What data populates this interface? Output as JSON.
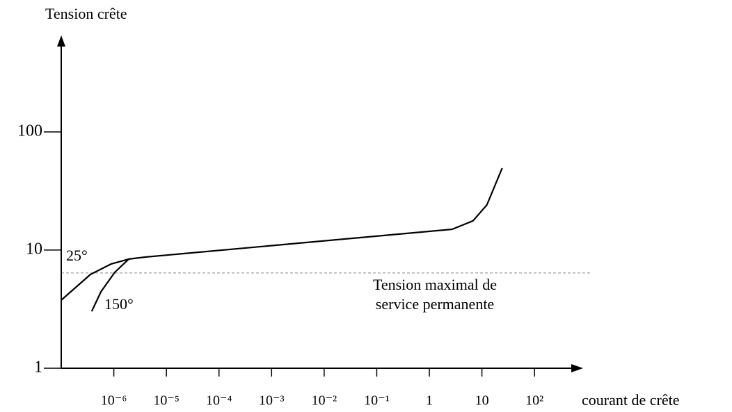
{
  "chart_data": {
    "type": "line",
    "y_label": "Tension crête",
    "x_label": "courant de crête",
    "xscale": "log",
    "yscale": "log",
    "xlim": [
      1e-07,
      500
    ],
    "ylim": [
      1,
      500
    ],
    "xticks": [
      {
        "value": 1e-06,
        "label": "10⁻⁶"
      },
      {
        "value": 1e-05,
        "label": "10⁻⁵"
      },
      {
        "value": 0.0001,
        "label": "10⁻⁴"
      },
      {
        "value": 0.001,
        "label": "10⁻³"
      },
      {
        "value": 0.01,
        "label": "10⁻²"
      },
      {
        "value": 0.1,
        "label": "10⁻¹"
      },
      1,
      10,
      {
        "value": 100,
        "label": "10²"
      }
    ],
    "yticks": [
      1,
      10,
      100
    ],
    "series": [
      {
        "name": "25°",
        "color": "#000000",
        "x": [
          1e-07,
          3.6e-07,
          8.9e-07,
          1.92e-06,
          4.1e-06,
          2.72,
          6.78,
          12.4,
          24.3
        ],
        "values": [
          3.77,
          6.22,
          7.63,
          8.39,
          8.74,
          15.0,
          17.7,
          24.1,
          49.4
        ]
      },
      {
        "name": "150°",
        "color": "#000000",
        "x": [
          3.8e-07,
          5.7e-07,
          1.04e-06,
          1.92e-06
        ],
        "values": [
          3.03,
          4.44,
          6.48,
          8.39
        ]
      }
    ],
    "reference_line": {
      "value": 6.4,
      "color": "#888888",
      "label": [
        "Tension maximal de",
        "service permanente"
      ]
    }
  }
}
